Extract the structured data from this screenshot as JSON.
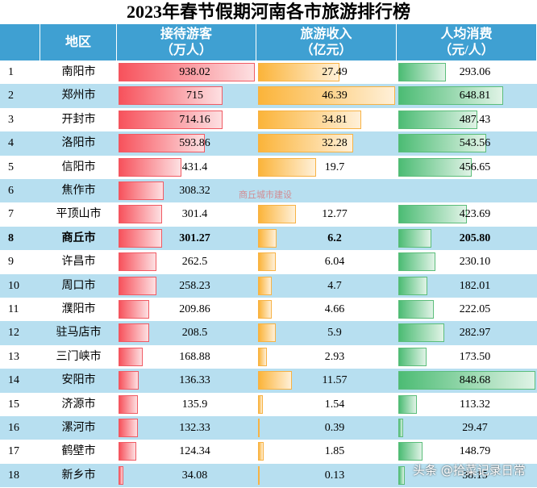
{
  "header": {
    "title": "2023年春节假期河南各市旅游排行榜"
  },
  "table": {
    "columns": [
      "地区",
      "接待游客\n（万人）",
      "旅游收入\n（亿元）",
      "人均消费\n（元/人）"
    ],
    "rows": [
      [
        1,
        "南阳市",
        "938.02",
        "27.49",
        "293.06"
      ],
      [
        2,
        "郑州市",
        "715",
        "46.39",
        "648.81"
      ],
      [
        3,
        "开封市",
        "714.16",
        "34.81",
        "487.43"
      ],
      [
        4,
        "洛阳市",
        "593.86",
        "32.28",
        "543.56"
      ],
      [
        5,
        "信阳市",
        "431.4",
        "19.7",
        "456.65"
      ],
      [
        6,
        "焦作市",
        "308.32",
        null,
        null
      ],
      [
        7,
        "平顶山市",
        "301.4",
        "12.77",
        "423.69"
      ],
      [
        8,
        "商丘市",
        "301.27",
        "6.2",
        "205.80"
      ],
      [
        9,
        "许昌市",
        "262.5",
        "6.04",
        "230.10"
      ],
      [
        10,
        "周口市",
        "258.23",
        "4.7",
        "182.01"
      ],
      [
        11,
        "濮阳市",
        "209.86",
        "4.66",
        "222.05"
      ],
      [
        12,
        "驻马店市",
        "208.5",
        "5.9",
        "282.97"
      ],
      [
        13,
        "三门峡市",
        "168.88",
        "2.93",
        "173.50"
      ],
      [
        14,
        "安阳市",
        "136.33",
        "11.57",
        "848.68"
      ],
      [
        15,
        "济源市",
        "135.9",
        "1.54",
        "113.32"
      ],
      [
        16,
        "漯河市",
        "132.33",
        "0.39",
        "29.47"
      ],
      [
        17,
        "鹤壁市",
        "124.34",
        "1.85",
        "148.79"
      ],
      [
        18,
        "新乡市",
        "34.08",
        "0.13",
        "38.15"
      ]
    ],
    "highlight_row": 7
  },
  "watermark": "商丘城市建设",
  "footer": "头条 @拾菜记录日常"
}
